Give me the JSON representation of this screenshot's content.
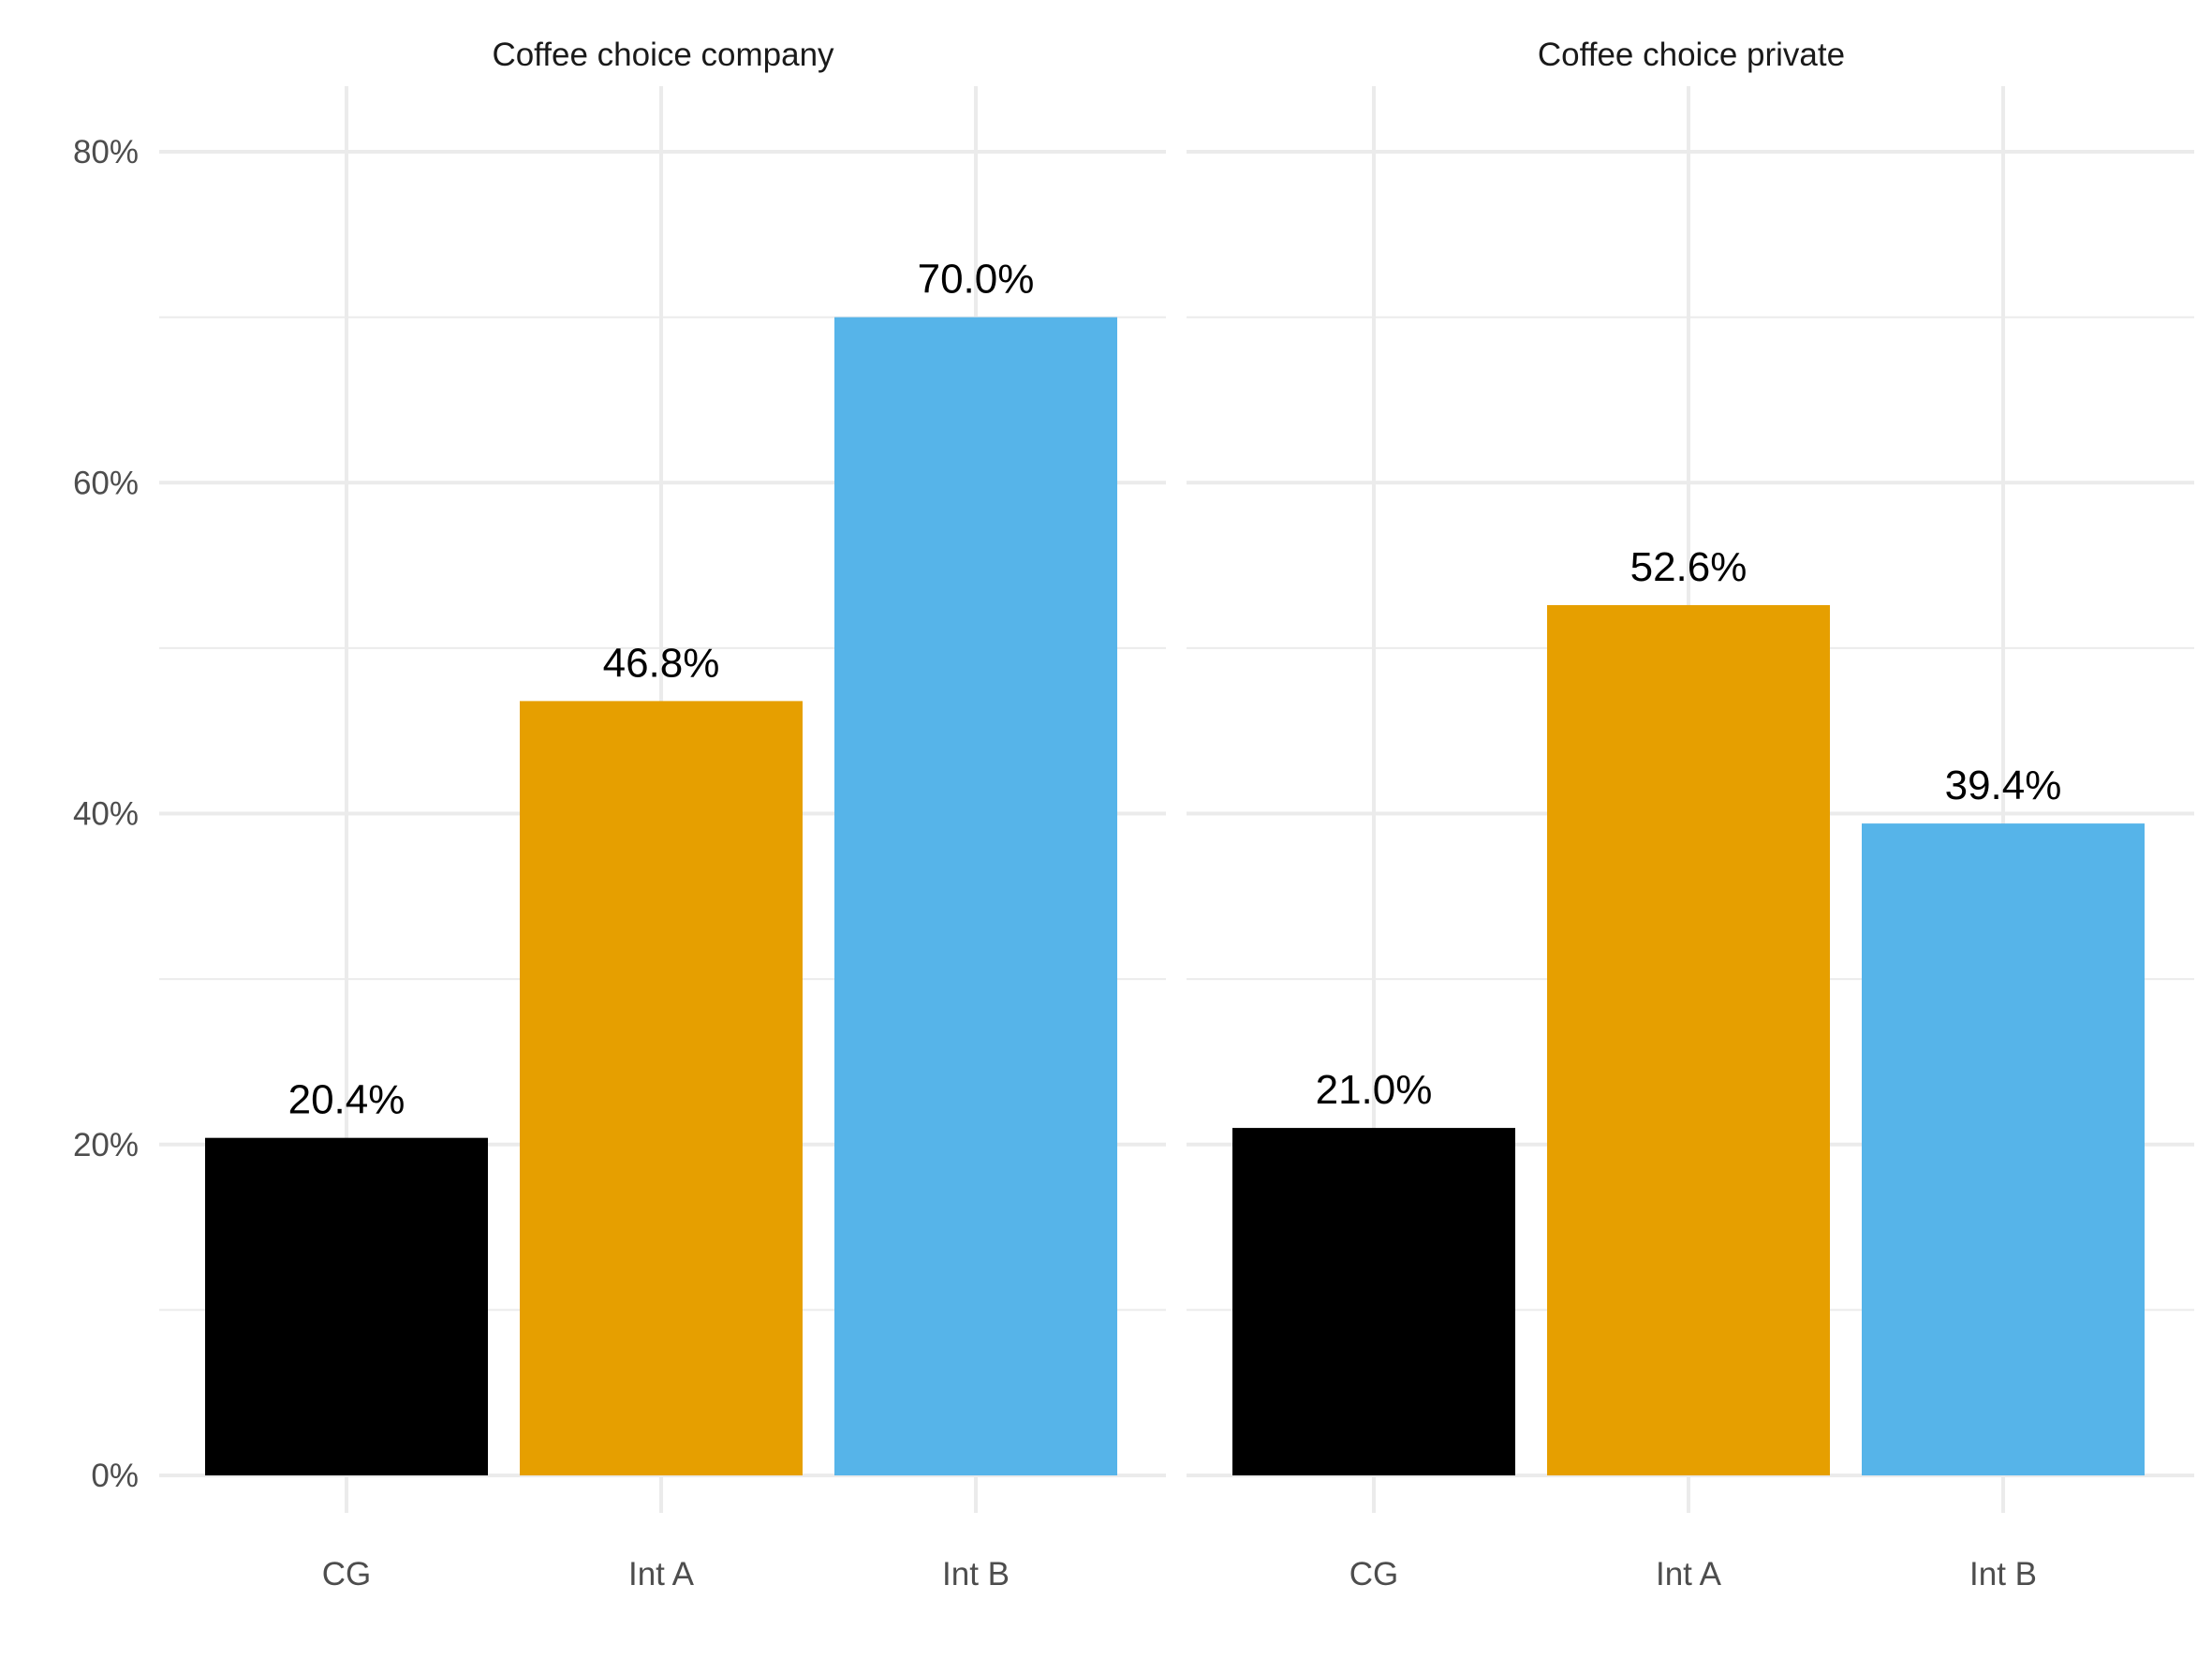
{
  "chart_data": [
    {
      "type": "bar",
      "title": "Coffee choice company",
      "categories": [
        "CG",
        "Int A",
        "Int B"
      ],
      "values": [
        20.4,
        46.8,
        70.0
      ],
      "labels": [
        "20.4%",
        "46.8%",
        "70.0%"
      ],
      "colors": [
        "#000000",
        "#E69F00",
        "#56B4E9"
      ],
      "ylim": [
        0,
        84
      ],
      "yticks": [
        0,
        20,
        40,
        60,
        80
      ],
      "ytick_labels": [
        "0%",
        "20%",
        "40%",
        "60%",
        "80%"
      ],
      "grid": true,
      "legend": "none"
    },
    {
      "type": "bar",
      "title": "Coffee choice private",
      "categories": [
        "CG",
        "Int A",
        "Int B"
      ],
      "values": [
        21.0,
        52.6,
        39.4
      ],
      "labels": [
        "21.0%",
        "52.6%",
        "39.4%"
      ],
      "colors": [
        "#000000",
        "#E69F00",
        "#56B4E9"
      ],
      "ylim": [
        0,
        84
      ],
      "yticks": [
        0,
        20,
        40,
        60,
        80
      ],
      "ytick_labels": [
        "0%",
        "20%",
        "40%",
        "60%",
        "80%"
      ],
      "grid": true,
      "legend": "none"
    }
  ]
}
